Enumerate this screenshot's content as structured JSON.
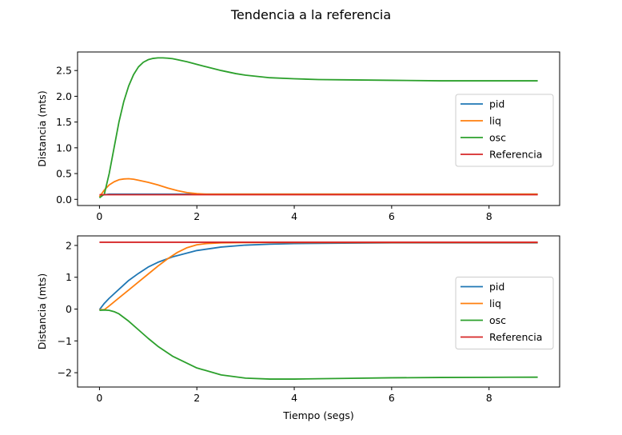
{
  "figure": {
    "suptitle": "Tendencia a la referencia"
  },
  "chart_data": [
    {
      "type": "line",
      "title": "",
      "xlabel": "",
      "ylabel": "Distancia (mts)",
      "xlim": [
        -0.45,
        9.45
      ],
      "ylim": [
        -0.12,
        2.86
      ],
      "xticks": [
        0,
        2,
        4,
        6,
        8
      ],
      "xtick_labels": [
        "0",
        "2",
        "4",
        "6",
        "8"
      ],
      "yticks": [
        0.0,
        0.5,
        1.0,
        1.5,
        2.0,
        2.5
      ],
      "ytick_labels": [
        "0.0",
        "0.5",
        "1.0",
        "1.5",
        "2.0",
        "2.5"
      ],
      "grid": false,
      "legend_position": "center-right",
      "series": [
        {
          "name": "pid",
          "color": "#1f77b4",
          "x": [
            0,
            0.05,
            0.1,
            0.2,
            0.4,
            0.8,
            1.5,
            3,
            5,
            9
          ],
          "y": [
            0.05,
            0.08,
            0.09,
            0.1,
            0.1,
            0.1,
            0.1,
            0.1,
            0.1,
            0.1
          ]
        },
        {
          "name": "liq",
          "color": "#ff7f0e",
          "x": [
            0,
            0.1,
            0.2,
            0.3,
            0.4,
            0.5,
            0.6,
            0.7,
            0.8,
            1.0,
            1.2,
            1.4,
            1.6,
            1.8,
            2.0,
            2.2,
            2.5,
            3,
            4,
            6,
            9
          ],
          "y": [
            0.05,
            0.18,
            0.28,
            0.34,
            0.38,
            0.395,
            0.4,
            0.39,
            0.37,
            0.33,
            0.28,
            0.22,
            0.17,
            0.13,
            0.11,
            0.1,
            0.1,
            0.1,
            0.1,
            0.1,
            0.1
          ]
        },
        {
          "name": "osc",
          "color": "#2ca02c",
          "x": [
            0,
            0.1,
            0.2,
            0.3,
            0.4,
            0.5,
            0.6,
            0.7,
            0.8,
            0.9,
            1.0,
            1.1,
            1.2,
            1.3,
            1.4,
            1.5,
            1.6,
            1.8,
            2.0,
            2.2,
            2.5,
            2.8,
            3.0,
            3.5,
            4.0,
            4.5,
            5.0,
            6.0,
            7.0,
            8.0,
            9.0
          ],
          "y": [
            0.03,
            0.1,
            0.5,
            1.0,
            1.5,
            1.9,
            2.2,
            2.42,
            2.57,
            2.66,
            2.71,
            2.735,
            2.745,
            2.745,
            2.74,
            2.73,
            2.71,
            2.67,
            2.62,
            2.57,
            2.5,
            2.44,
            2.41,
            2.36,
            2.34,
            2.325,
            2.32,
            2.31,
            2.3,
            2.3,
            2.3
          ]
        },
        {
          "name": "Referencia",
          "color": "#d62728",
          "x": [
            0,
            9
          ],
          "y": [
            0.09,
            0.09
          ]
        }
      ]
    },
    {
      "type": "line",
      "title": "",
      "xlabel": "Tiempo (segs)",
      "ylabel": "Distancia (mts)",
      "xlim": [
        -0.45,
        9.45
      ],
      "ylim": [
        -2.45,
        2.3
      ],
      "xticks": [
        0,
        2,
        4,
        6,
        8
      ],
      "xtick_labels": [
        "0",
        "2",
        "4",
        "6",
        "8"
      ],
      "yticks": [
        -2,
        -1,
        0,
        1,
        2
      ],
      "ytick_labels": [
        "−2",
        "−1",
        "0",
        "1",
        "2"
      ],
      "grid": false,
      "legend_position": "center-right",
      "series": [
        {
          "name": "pid",
          "color": "#1f77b4",
          "x": [
            0,
            0.05,
            0.1,
            0.2,
            0.4,
            0.6,
            0.8,
            1.0,
            1.2,
            1.5,
            2.0,
            2.5,
            3.0,
            3.5,
            4.0,
            5.0,
            6.0,
            9.0
          ],
          "y": [
            -0.02,
            0.08,
            0.18,
            0.34,
            0.62,
            0.9,
            1.12,
            1.32,
            1.47,
            1.64,
            1.84,
            1.95,
            2.01,
            2.04,
            2.06,
            2.07,
            2.08,
            2.08
          ]
        },
        {
          "name": "liq",
          "color": "#ff7f0e",
          "x": [
            0,
            0.1,
            0.2,
            0.4,
            0.6,
            0.8,
            1.0,
            1.2,
            1.4,
            1.6,
            1.8,
            2.0,
            2.2,
            2.5,
            3.0,
            4.0,
            6.0,
            9.0
          ],
          "y": [
            -0.02,
            -0.02,
            0.1,
            0.35,
            0.6,
            0.85,
            1.1,
            1.35,
            1.58,
            1.78,
            1.93,
            2.02,
            2.06,
            2.08,
            2.09,
            2.09,
            2.09,
            2.09
          ]
        },
        {
          "name": "osc",
          "color": "#2ca02c",
          "x": [
            0,
            0.1,
            0.2,
            0.3,
            0.4,
            0.6,
            0.8,
            1.0,
            1.2,
            1.5,
            2.0,
            2.5,
            3.0,
            3.5,
            4.0,
            4.5,
            5.0,
            6.0,
            7.0,
            8.0,
            9.0
          ],
          "y": [
            -0.04,
            -0.03,
            -0.04,
            -0.08,
            -0.15,
            -0.38,
            -0.65,
            -0.92,
            -1.17,
            -1.48,
            -1.85,
            -2.07,
            -2.17,
            -2.2,
            -2.2,
            -2.19,
            -2.18,
            -2.16,
            -2.15,
            -2.145,
            -2.14
          ]
        },
        {
          "name": "Referencia",
          "color": "#d62728",
          "x": [
            0,
            9
          ],
          "y": [
            2.1,
            2.1
          ]
        }
      ]
    }
  ]
}
